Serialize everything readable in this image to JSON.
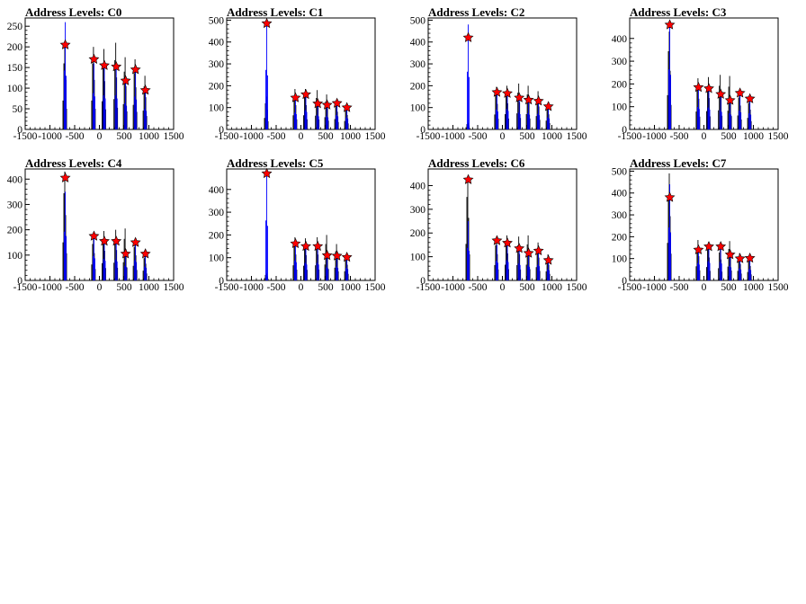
{
  "figure": {
    "rows": 2,
    "cols": 4
  },
  "chart_data": [
    {
      "type": "histogram-with-markers",
      "title": "Address Levels: C0",
      "xlim": [
        -1500,
        1500
      ],
      "ylim": [
        0,
        270
      ],
      "xticks": [
        -1500,
        -1000,
        -500,
        0,
        500,
        1000,
        1500
      ],
      "yticks": [
        0,
        50,
        100,
        150,
        200,
        250
      ],
      "black_bars": [
        [
          -700,
          200
        ],
        [
          -120,
          200
        ],
        [
          90,
          195
        ],
        [
          330,
          210
        ],
        [
          520,
          175
        ],
        [
          720,
          170
        ],
        [
          920,
          130
        ]
      ],
      "blue_bars": [
        [
          -690,
          260
        ],
        [
          -110,
          160
        ],
        [
          100,
          150
        ],
        [
          340,
          150
        ],
        [
          530,
          115
        ],
        [
          730,
          145
        ],
        [
          930,
          90
        ]
      ],
      "markers": [
        [
          -690,
          205
        ],
        [
          -110,
          170
        ],
        [
          100,
          155
        ],
        [
          340,
          152
        ],
        [
          530,
          118
        ],
        [
          730,
          145
        ],
        [
          930,
          95
        ]
      ]
    },
    {
      "type": "histogram-with-markers",
      "title": "Address Levels: C1",
      "xlim": [
        -1500,
        1500
      ],
      "ylim": [
        0,
        510
      ],
      "xticks": [
        -1500,
        -1000,
        -500,
        0,
        500,
        1000,
        1500
      ],
      "yticks": [
        0,
        100,
        200,
        300,
        400,
        500
      ],
      "black_bars": [
        [
          -700,
          150
        ],
        [
          -120,
          185
        ],
        [
          90,
          185
        ],
        [
          330,
          180
        ],
        [
          520,
          160
        ],
        [
          720,
          135
        ],
        [
          920,
          110
        ]
      ],
      "blue_bars": [
        [
          -690,
          495
        ],
        [
          -110,
          140
        ],
        [
          100,
          160
        ],
        [
          340,
          120
        ],
        [
          530,
          110
        ],
        [
          730,
          120
        ],
        [
          930,
          100
        ]
      ],
      "markers": [
        [
          -690,
          485
        ],
        [
          -110,
          145
        ],
        [
          100,
          160
        ],
        [
          340,
          118
        ],
        [
          530,
          112
        ],
        [
          730,
          120
        ],
        [
          930,
          100
        ]
      ]
    },
    {
      "type": "histogram-with-markers",
      "title": "Address Levels: C2",
      "xlim": [
        -1500,
        1500
      ],
      "ylim": [
        0,
        510
      ],
      "xticks": [
        -1500,
        -1000,
        -500,
        0,
        500,
        1000,
        1500
      ],
      "yticks": [
        0,
        100,
        200,
        300,
        400,
        500
      ],
      "black_bars": [
        [
          -700,
          30
        ],
        [
          -120,
          195
        ],
        [
          90,
          200
        ],
        [
          330,
          210
        ],
        [
          520,
          200
        ],
        [
          720,
          175
        ],
        [
          920,
          115
        ]
      ],
      "blue_bars": [
        [
          -690,
          480
        ],
        [
          -110,
          165
        ],
        [
          100,
          170
        ],
        [
          340,
          140
        ],
        [
          530,
          135
        ],
        [
          730,
          130
        ],
        [
          930,
          100
        ]
      ],
      "markers": [
        [
          -690,
          420
        ],
        [
          -110,
          170
        ],
        [
          100,
          165
        ],
        [
          340,
          145
        ],
        [
          530,
          135
        ],
        [
          730,
          130
        ],
        [
          930,
          105
        ]
      ]
    },
    {
      "type": "histogram-with-markers",
      "title": "Address Levels: C3",
      "xlim": [
        -1500,
        1500
      ],
      "ylim": [
        0,
        490
      ],
      "xticks": [
        -1500,
        -1000,
        -500,
        0,
        500,
        1000,
        1500
      ],
      "yticks": [
        0,
        100,
        200,
        300,
        400
      ],
      "black_bars": [
        [
          -700,
          430
        ],
        [
          -120,
          225
        ],
        [
          90,
          230
        ],
        [
          330,
          240
        ],
        [
          520,
          235
        ],
        [
          720,
          175
        ],
        [
          920,
          145
        ]
      ],
      "blue_bars": [
        [
          -690,
          480
        ],
        [
          -110,
          180
        ],
        [
          100,
          175
        ],
        [
          340,
          155
        ],
        [
          530,
          130
        ],
        [
          730,
          150
        ],
        [
          930,
          130
        ]
      ],
      "markers": [
        [
          -690,
          460
        ],
        [
          -110,
          185
        ],
        [
          100,
          180
        ],
        [
          340,
          155
        ],
        [
          530,
          128
        ],
        [
          730,
          160
        ],
        [
          930,
          135
        ]
      ]
    },
    {
      "type": "histogram-with-markers",
      "title": "Address Levels: C4",
      "xlim": [
        -1500,
        1500
      ],
      "ylim": [
        0,
        440
      ],
      "xticks": [
        -1500,
        -1000,
        -500,
        0,
        500,
        1000,
        1500
      ],
      "yticks": [
        0,
        100,
        200,
        300,
        400
      ],
      "black_bars": [
        [
          -700,
          430
        ],
        [
          -120,
          180
        ],
        [
          90,
          195
        ],
        [
          330,
          200
        ],
        [
          520,
          205
        ],
        [
          720,
          165
        ],
        [
          920,
          110
        ]
      ],
      "blue_bars": [
        [
          -690,
          350
        ],
        [
          -110,
          175
        ],
        [
          100,
          155
        ],
        [
          340,
          150
        ],
        [
          530,
          105
        ],
        [
          730,
          145
        ],
        [
          930,
          100
        ]
      ],
      "markers": [
        [
          -690,
          405
        ],
        [
          -110,
          175
        ],
        [
          100,
          155
        ],
        [
          340,
          155
        ],
        [
          530,
          105
        ],
        [
          730,
          150
        ],
        [
          930,
          105
        ]
      ]
    },
    {
      "type": "histogram-with-markers",
      "title": "Address Levels: C5",
      "xlim": [
        -1500,
        1500
      ],
      "ylim": [
        0,
        490
      ],
      "xticks": [
        -1500,
        -1000,
        -500,
        0,
        500,
        1000,
        1500
      ],
      "yticks": [
        0,
        100,
        200,
        300,
        400
      ],
      "black_bars": [
        [
          -700,
          30
        ],
        [
          -120,
          190
        ],
        [
          90,
          185
        ],
        [
          330,
          190
        ],
        [
          520,
          200
        ],
        [
          720,
          160
        ],
        [
          920,
          115
        ]
      ],
      "blue_bars": [
        [
          -690,
          480
        ],
        [
          -110,
          160
        ],
        [
          100,
          140
        ],
        [
          340,
          140
        ],
        [
          530,
          105
        ],
        [
          730,
          110
        ],
        [
          930,
          100
        ]
      ],
      "markers": [
        [
          -690,
          470
        ],
        [
          -110,
          162
        ],
        [
          100,
          150
        ],
        [
          340,
          150
        ],
        [
          530,
          110
        ],
        [
          730,
          108
        ],
        [
          930,
          102
        ]
      ]
    },
    {
      "type": "histogram-with-markers",
      "title": "Address Levels: C6",
      "xlim": [
        -1500,
        1500
      ],
      "ylim": [
        0,
        470
      ],
      "xticks": [
        -1500,
        -1000,
        -500,
        0,
        500,
        1000,
        1500
      ],
      "yticks": [
        0,
        100,
        200,
        300,
        400
      ],
      "black_bars": [
        [
          -700,
          440
        ],
        [
          -120,
          185
        ],
        [
          90,
          190
        ],
        [
          330,
          185
        ],
        [
          520,
          190
        ],
        [
          720,
          160
        ],
        [
          920,
          110
        ]
      ],
      "blue_bars": [
        [
          -690,
          250
        ],
        [
          -110,
          150
        ],
        [
          100,
          155
        ],
        [
          340,
          130
        ],
        [
          530,
          115
        ],
        [
          730,
          120
        ],
        [
          930,
          85
        ]
      ],
      "markers": [
        [
          -690,
          425
        ],
        [
          -110,
          168
        ],
        [
          100,
          158
        ],
        [
          340,
          135
        ],
        [
          530,
          115
        ],
        [
          730,
          125
        ],
        [
          930,
          85
        ]
      ]
    },
    {
      "type": "histogram-with-markers",
      "title": "Address Levels: C7",
      "xlim": [
        -1500,
        1500
      ],
      "ylim": [
        0,
        510
      ],
      "xticks": [
        -1500,
        -1000,
        -500,
        0,
        500,
        1000,
        1500
      ],
      "yticks": [
        0,
        100,
        200,
        300,
        400,
        500
      ],
      "black_bars": [
        [
          -700,
          490
        ],
        [
          -120,
          185
        ],
        [
          90,
          175
        ],
        [
          330,
          160
        ],
        [
          520,
          180
        ],
        [
          720,
          125
        ],
        [
          920,
          110
        ]
      ],
      "blue_bars": [
        [
          -690,
          440
        ],
        [
          -110,
          145
        ],
        [
          100,
          160
        ],
        [
          340,
          155
        ],
        [
          530,
          120
        ],
        [
          730,
          100
        ],
        [
          930,
          95
        ]
      ],
      "markers": [
        [
          -690,
          380
        ],
        [
          -110,
          140
        ],
        [
          100,
          155
        ],
        [
          340,
          155
        ],
        [
          530,
          118
        ],
        [
          730,
          100
        ],
        [
          930,
          102
        ]
      ]
    }
  ]
}
